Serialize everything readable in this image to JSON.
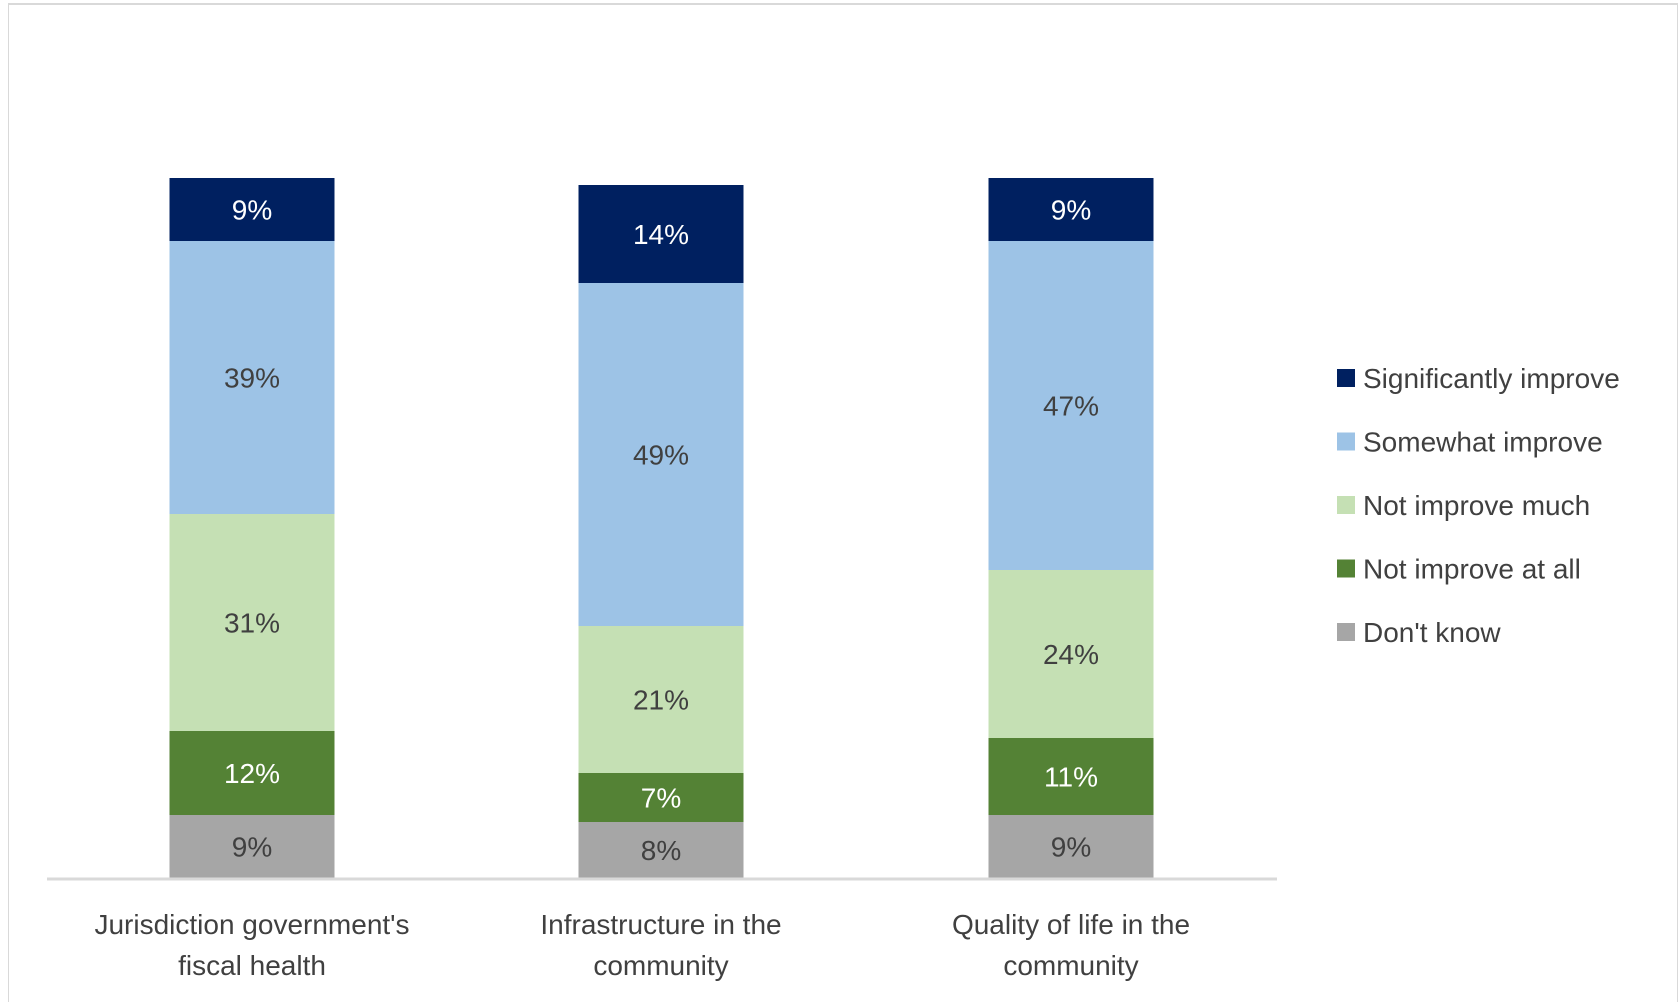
{
  "chart_data": {
    "type": "bar",
    "stacked": true,
    "categories": [
      [
        "Jurisdiction government's",
        "fiscal health"
      ],
      [
        "Infrastructure in the",
        "community"
      ],
      [
        "Quality of life in the",
        "community"
      ]
    ],
    "series": [
      {
        "name": "Don't know",
        "values": [
          9,
          8,
          9
        ],
        "labels": [
          "9%",
          "8%",
          "9%"
        ],
        "color": "#a6a6a6",
        "label_color": "#404040"
      },
      {
        "name": "Not improve at all",
        "values": [
          12,
          7,
          11
        ],
        "labels": [
          "12%",
          "7%",
          "11%"
        ],
        "color": "#548235",
        "label_color": "#ffffff"
      },
      {
        "name": "Not improve much",
        "values": [
          31,
          21,
          24
        ],
        "labels": [
          "31%",
          "21%",
          "24%"
        ],
        "color": "#c5e0b4",
        "label_color": "#404040"
      },
      {
        "name": "Somewhat improve",
        "values": [
          39,
          49,
          47
        ],
        "labels": [
          "39%",
          "49%",
          "47%"
        ],
        "color": "#9dc3e6",
        "label_color": "#404040"
      },
      {
        "name": "Significantly improve",
        "values": [
          9,
          14,
          9
        ],
        "labels": [
          "9%",
          "14%",
          "9%"
        ],
        "color": "#002060",
        "label_color": "#ffffff"
      }
    ],
    "legend_order": [
      "Significantly improve",
      "Somewhat improve",
      "Not improve much",
      "Not improve at all",
      "Don't know"
    ],
    "legend_position": "right",
    "title": "",
    "xlabel": "",
    "ylabel": "",
    "grid": false,
    "axis_color": "#d9d9d9"
  }
}
